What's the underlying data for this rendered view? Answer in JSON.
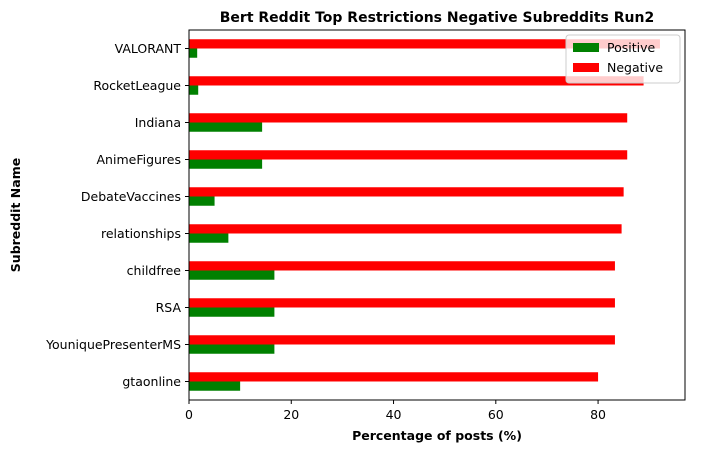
{
  "chart_data": {
    "type": "bar",
    "orientation": "horizontal",
    "title": "Bert Reddit Top Restrictions Negative Subreddits Run2",
    "xlabel": "Percentage of posts (%)",
    "ylabel": "Subreddit Name",
    "xlim": [
      0,
      97
    ],
    "xticks": [
      0,
      20,
      40,
      60,
      80
    ],
    "grid": false,
    "legend_position": "top-right",
    "categories": [
      "gtaonline",
      "YouniquePresenterMS",
      "RSA",
      "childfree",
      "relationships",
      "DebateVaccines",
      "AnimeFigures",
      "Indiana",
      "RocketLeague",
      "VALORANT"
    ],
    "series": [
      {
        "name": "Positive",
        "color": "#008000",
        "values": [
          10.0,
          16.7,
          16.7,
          16.7,
          7.7,
          5.0,
          14.3,
          14.3,
          1.8,
          1.6
        ]
      },
      {
        "name": "Negative",
        "color": "#ff0000",
        "values": [
          80.0,
          83.3,
          83.3,
          83.3,
          84.6,
          85.0,
          85.7,
          85.7,
          88.9,
          92.1
        ]
      }
    ]
  }
}
